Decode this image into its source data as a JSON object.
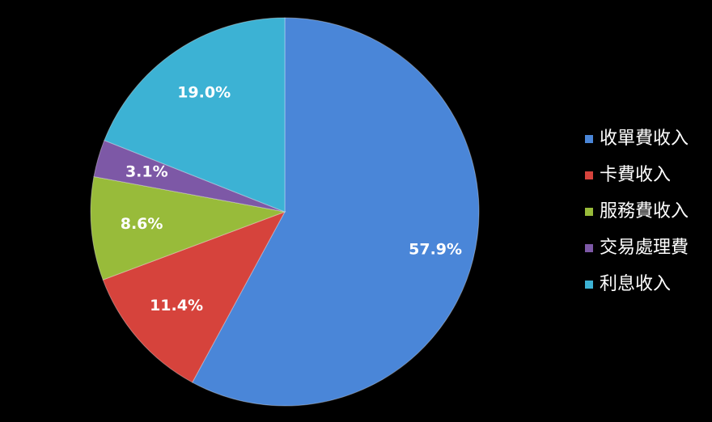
{
  "chart_data": {
    "type": "pie",
    "categories": [
      "收單費收入",
      "卡費收入",
      "服務費收入",
      "交易處理費",
      "利息收入"
    ],
    "values": [
      57.9,
      11.4,
      8.6,
      3.1,
      19.0
    ],
    "value_labels": [
      "57.9%",
      "11.4%",
      "8.6%",
      "3.1%",
      "19.0%"
    ],
    "colors": [
      "#4a86d8",
      "#d6433c",
      "#98bb3a",
      "#7d58a6",
      "#3cb2d4"
    ],
    "legend": "right"
  }
}
